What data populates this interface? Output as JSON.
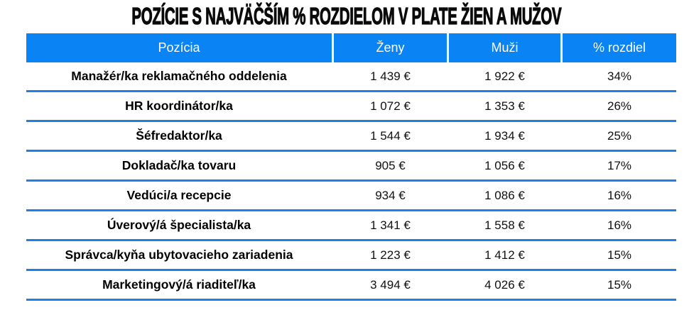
{
  "title": "POZÍCIE S NAJVÄČŠÍM % ROZDIELOM V PLATE ŽIEN A MUŽOV",
  "colors": {
    "header_bg": "#0a84f5",
    "header_text": "#ffffff",
    "row_divider": "#1d80e6"
  },
  "table": {
    "columns": [
      "Pozícia",
      "Ženy",
      "Muži",
      "% rozdiel"
    ],
    "rows": [
      {
        "position": "Manažér/ka reklamačného oddelenia",
        "women": "1 439 €",
        "men": "1 922 €",
        "diff": "34%"
      },
      {
        "position": "HR koordinátor/ka",
        "women": "1 072 €",
        "men": "1 353 €",
        "diff": "26%"
      },
      {
        "position": "Šéfredaktor/ka",
        "women": "1 544 €",
        "men": "1 934 €",
        "diff": "25%"
      },
      {
        "position": "Dokladač/ka tovaru",
        "women": "905 €",
        "men": "1 056 €",
        "diff": "17%"
      },
      {
        "position": "Vedúci/a recepcie",
        "women": "934 €",
        "men": "1 086 €",
        "diff": "16%"
      },
      {
        "position": "Úverový/á špecialista/ka",
        "women": "1 341 €",
        "men": "1 558 €",
        "diff": "16%"
      },
      {
        "position": "Správca/kyňa ubytovacieho zariadenia",
        "women": "1 223 €",
        "men": "1 412 €",
        "diff": "15%"
      },
      {
        "position": "Marketingový/á riaditeľ/ka",
        "women": "3 494 €",
        "men": "4 026 €",
        "diff": "15%"
      }
    ]
  }
}
